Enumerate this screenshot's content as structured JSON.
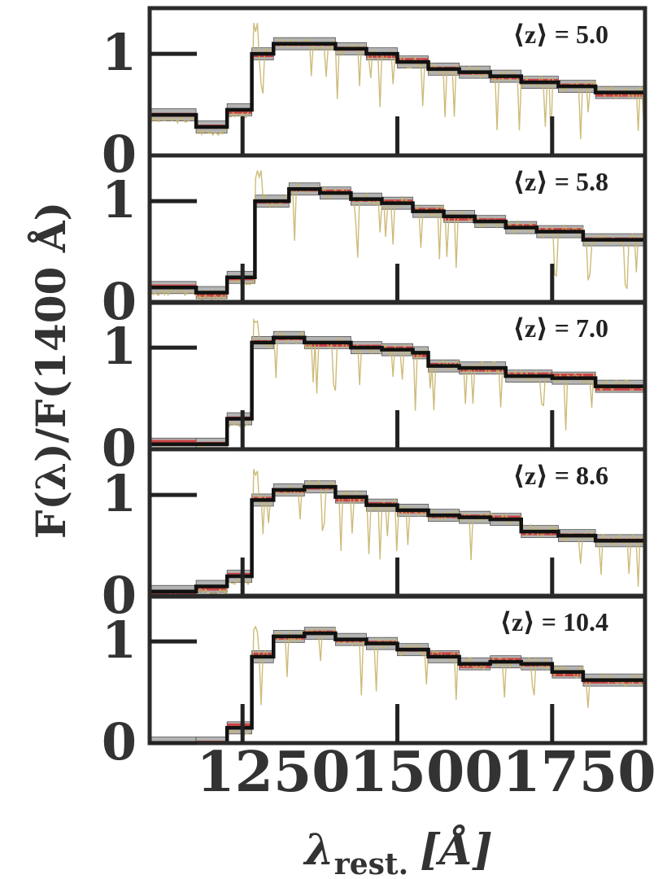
{
  "chart_data": {
    "type": "line",
    "ylabel": "F(λ)/F(1400 Å)",
    "xlabel_symbol": "λ",
    "xlabel_subscript": "rest.",
    "xlabel_unit": "[Å]",
    "xlim": [
      1100,
      1900
    ],
    "ylim": [
      0,
      1.45
    ],
    "x_ticks": [
      1250,
      1500,
      1750
    ],
    "x_tick_labels": [
      "1250",
      "1500",
      "1750"
    ],
    "y_ticks": [
      0,
      1
    ],
    "y_tick_labels": [
      "0",
      "1"
    ],
    "colors": {
      "model_steps": "#111111",
      "model_band": "#9a9a9a",
      "observed": "#cc4444",
      "spectrum": "#c8b46a"
    },
    "panels": [
      {
        "label": "⟨z⟩ = 5.0",
        "model_edges": [
          1100,
          1175,
          1225,
          1265,
          1300,
          1400,
          1450,
          1500,
          1550,
          1600,
          1650,
          1700,
          1760,
          1820,
          1900
        ],
        "model_values": [
          0.4,
          0.28,
          0.45,
          1.0,
          1.1,
          1.05,
          1.0,
          0.92,
          0.85,
          0.82,
          0.78,
          0.72,
          0.68,
          0.62
        ]
      },
      {
        "label": "⟨z⟩ = 5.8",
        "model_edges": [
          1100,
          1175,
          1225,
          1270,
          1325,
          1375,
          1425,
          1475,
          1525,
          1575,
          1625,
          1675,
          1725,
          1800,
          1900
        ],
        "model_values": [
          0.15,
          0.1,
          0.25,
          1.0,
          1.12,
          1.08,
          1.02,
          0.98,
          0.9,
          0.85,
          0.8,
          0.74,
          0.7,
          0.62
        ]
      },
      {
        "label": "⟨z⟩ = 7.0",
        "model_edges": [
          1100,
          1175,
          1225,
          1265,
          1300,
          1350,
          1425,
          1475,
          1525,
          1550,
          1600,
          1675,
          1750,
          1820,
          1900
        ],
        "model_values": [
          0.05,
          0.05,
          0.3,
          1.05,
          1.1,
          1.05,
          1.0,
          0.98,
          0.95,
          0.82,
          0.8,
          0.72,
          0.7,
          0.62
        ]
      },
      {
        "label": "⟨z⟩ = 8.6",
        "model_edges": [
          1100,
          1175,
          1225,
          1265,
          1300,
          1350,
          1400,
          1450,
          1500,
          1550,
          1600,
          1650,
          1700,
          1760,
          1820,
          1900
        ],
        "model_values": [
          0.05,
          0.1,
          0.2,
          0.95,
          1.05,
          1.08,
          0.98,
          0.9,
          0.85,
          0.8,
          0.78,
          0.76,
          0.64,
          0.6,
          0.55
        ]
      },
      {
        "label": "⟨z⟩ = 10.4",
        "model_edges": [
          1100,
          1175,
          1225,
          1265,
          1300,
          1350,
          1400,
          1450,
          1500,
          1550,
          1600,
          1650,
          1700,
          1750,
          1800,
          1900
        ],
        "model_values": [
          0.0,
          0.0,
          0.15,
          0.85,
          1.05,
          1.08,
          1.02,
          0.98,
          0.92,
          0.85,
          0.78,
          0.8,
          0.78,
          0.7,
          0.62
        ]
      }
    ]
  }
}
